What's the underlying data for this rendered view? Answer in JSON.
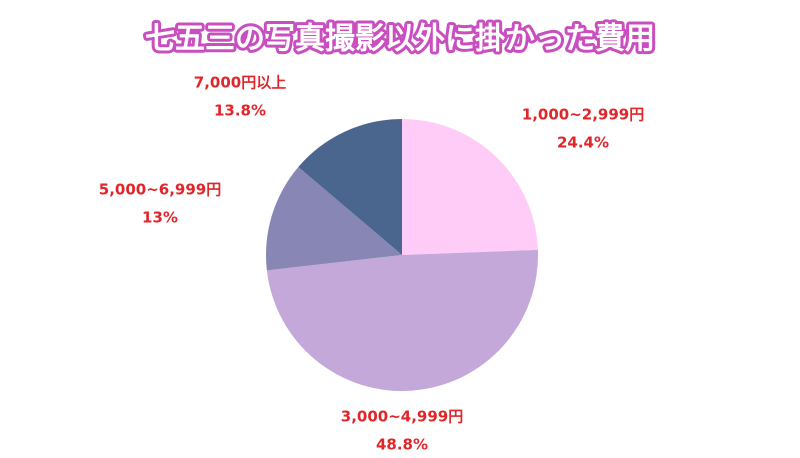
{
  "chart_data": {
    "type": "pie",
    "title": "七五三の写真撮影以外に掛かった費用",
    "categories": [
      "1,000~2,999円",
      "3,000~4,999円",
      "5,000~6,999円",
      "7,000円以上"
    ],
    "values": [
      24.4,
      48.8,
      13,
      13.8
    ],
    "value_labels": [
      "24.4%",
      "48.8%",
      "13%",
      "13.8%"
    ],
    "colors": [
      "#ffccf7",
      "#c4a8d9",
      "#8886b4",
      "#4a668f"
    ]
  }
}
